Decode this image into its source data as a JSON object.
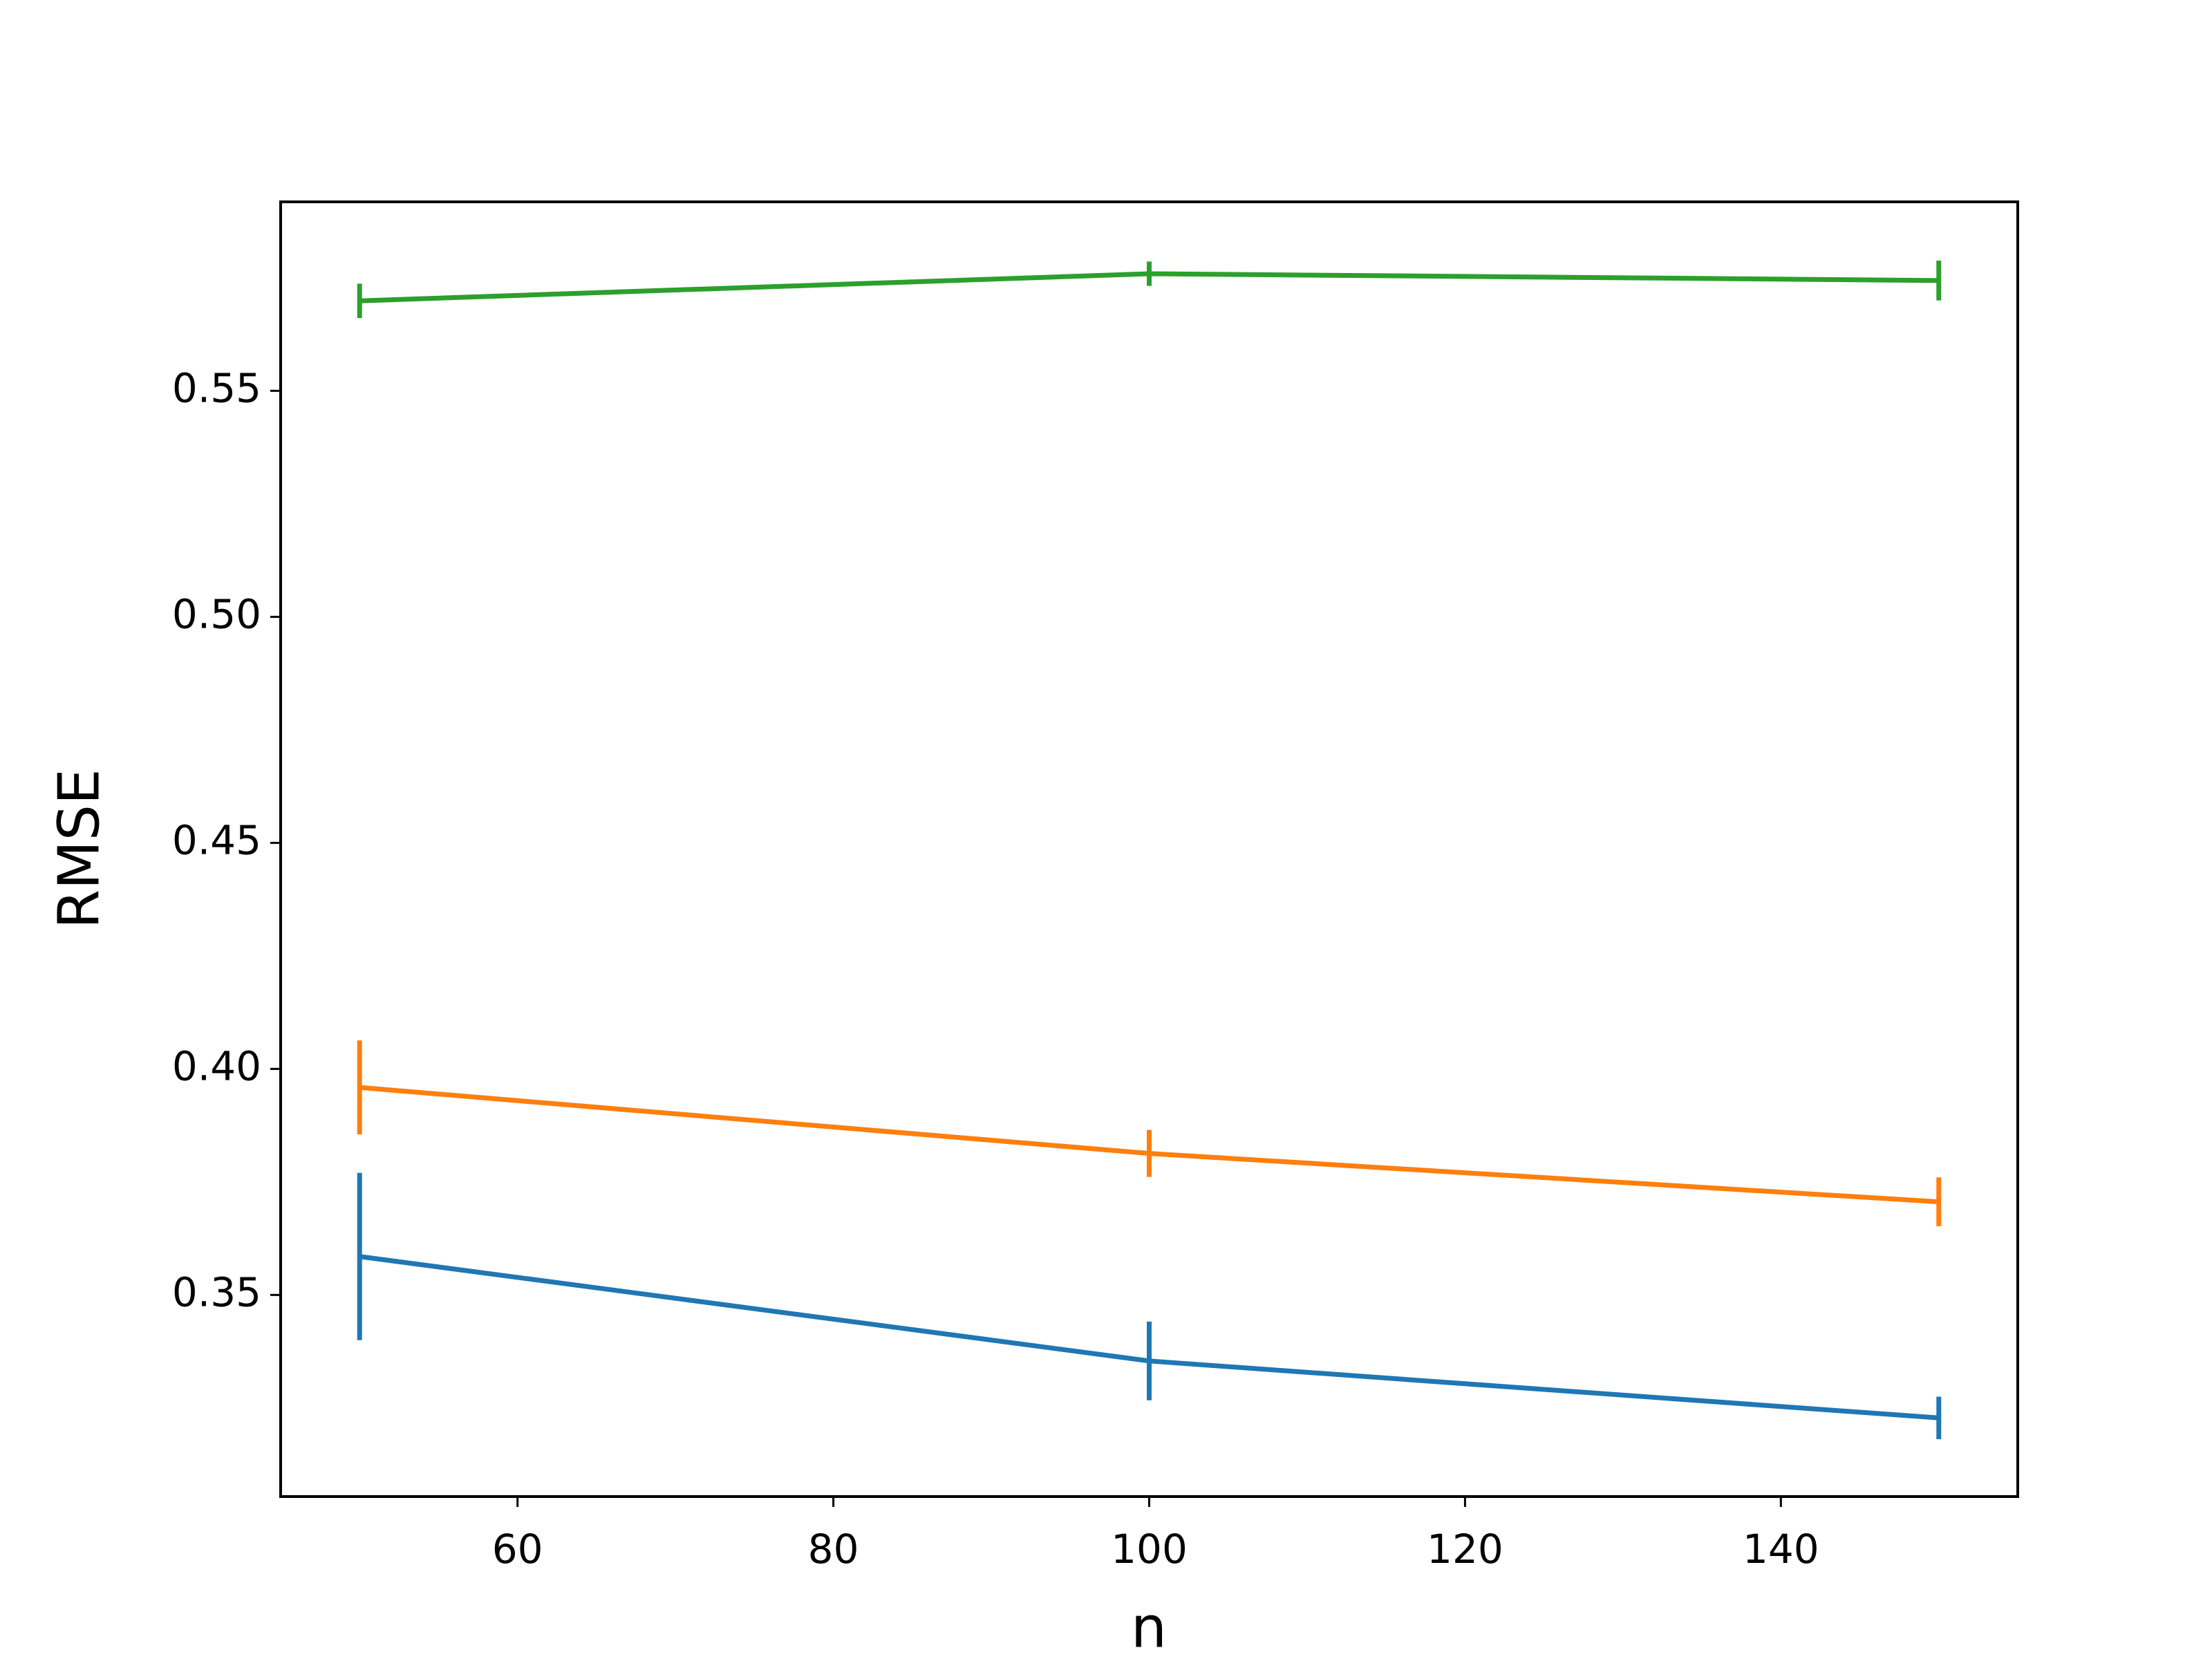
{
  "chart_data": {
    "type": "line",
    "x_label": "n",
    "y_label": "RMSE",
    "x": [
      50,
      100,
      150
    ],
    "series": [
      {
        "color": "#1f77b4",
        "values": [
          0.3585,
          0.3354,
          0.3228
        ],
        "errors": [
          0.0185,
          0.0087,
          0.0047
        ]
      },
      {
        "color": "#ff7f0e",
        "values": [
          0.3959,
          0.3813,
          0.3706
        ],
        "errors": [
          0.0104,
          0.0052,
          0.0054
        ]
      },
      {
        "color": "#2ca02c",
        "values": [
          0.5699,
          0.5759,
          0.5744
        ],
        "errors": [
          0.0038,
          0.0027,
          0.0044
        ]
      }
    ],
    "xlim": [
      45,
      155
    ],
    "ylim": [
      0.3054,
      0.5918
    ],
    "xticks": [
      60,
      80,
      100,
      120,
      140
    ],
    "yticks": [
      0.35,
      {
        "value": 0.4,
        "label": "0.40"
      },
      0.45,
      {
        "value": 0.5,
        "label": "0.50"
      },
      0.55
    ]
  }
}
